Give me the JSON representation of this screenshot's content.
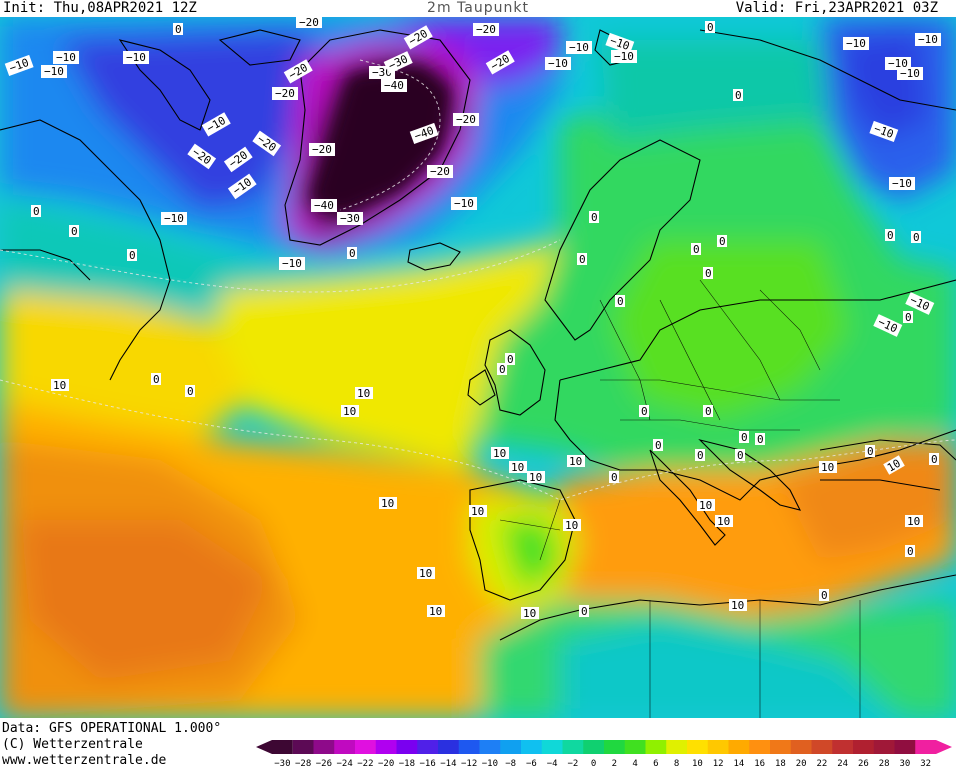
{
  "header": {
    "init": "Init: Thu,08APR2021 12Z",
    "title": "2m Taupunkt",
    "valid": "Valid: Fri,23APR2021 03Z"
  },
  "footer": {
    "data_source": "Data: GFS OPERATIONAL 1.000°",
    "copyright": "(C) Wetterzentrale",
    "website": "www.wetterzentrale.de"
  },
  "colorbar": {
    "ticks": [
      "−30",
      "−28",
      "−26",
      "−24",
      "−22",
      "−20",
      "−18",
      "−16",
      "−14",
      "−12",
      "−10",
      "−8",
      "−6",
      "−4",
      "−2",
      "0",
      "2",
      "4",
      "6",
      "8",
      "10",
      "12",
      "14",
      "16",
      "18",
      "20",
      "22",
      "24",
      "26",
      "28",
      "30",
      "32"
    ],
    "colors": [
      "#3d0733",
      "#5c0a55",
      "#8e0a8a",
      "#c00ac0",
      "#e010e0",
      "#b000f0",
      "#7a00f0",
      "#5020e8",
      "#2a30e0",
      "#1e58f0",
      "#1e7ff5",
      "#10a0f0",
      "#10c0f0",
      "#10d8d8",
      "#10d8a0",
      "#10d070",
      "#20d840",
      "#40e020",
      "#90f000",
      "#e0f000",
      "#ffe000",
      "#ffc800",
      "#ffaa00",
      "#ff9010",
      "#f07818",
      "#e06020",
      "#d04828",
      "#c03030",
      "#b02030",
      "#a01838",
      "#900e40",
      "#f020a0"
    ]
  },
  "map_labels": {
    "minus40": "−40",
    "minus30": "−30",
    "minus20": "−20",
    "minus10": "−10",
    "zero": "0",
    "ten": "10"
  }
}
